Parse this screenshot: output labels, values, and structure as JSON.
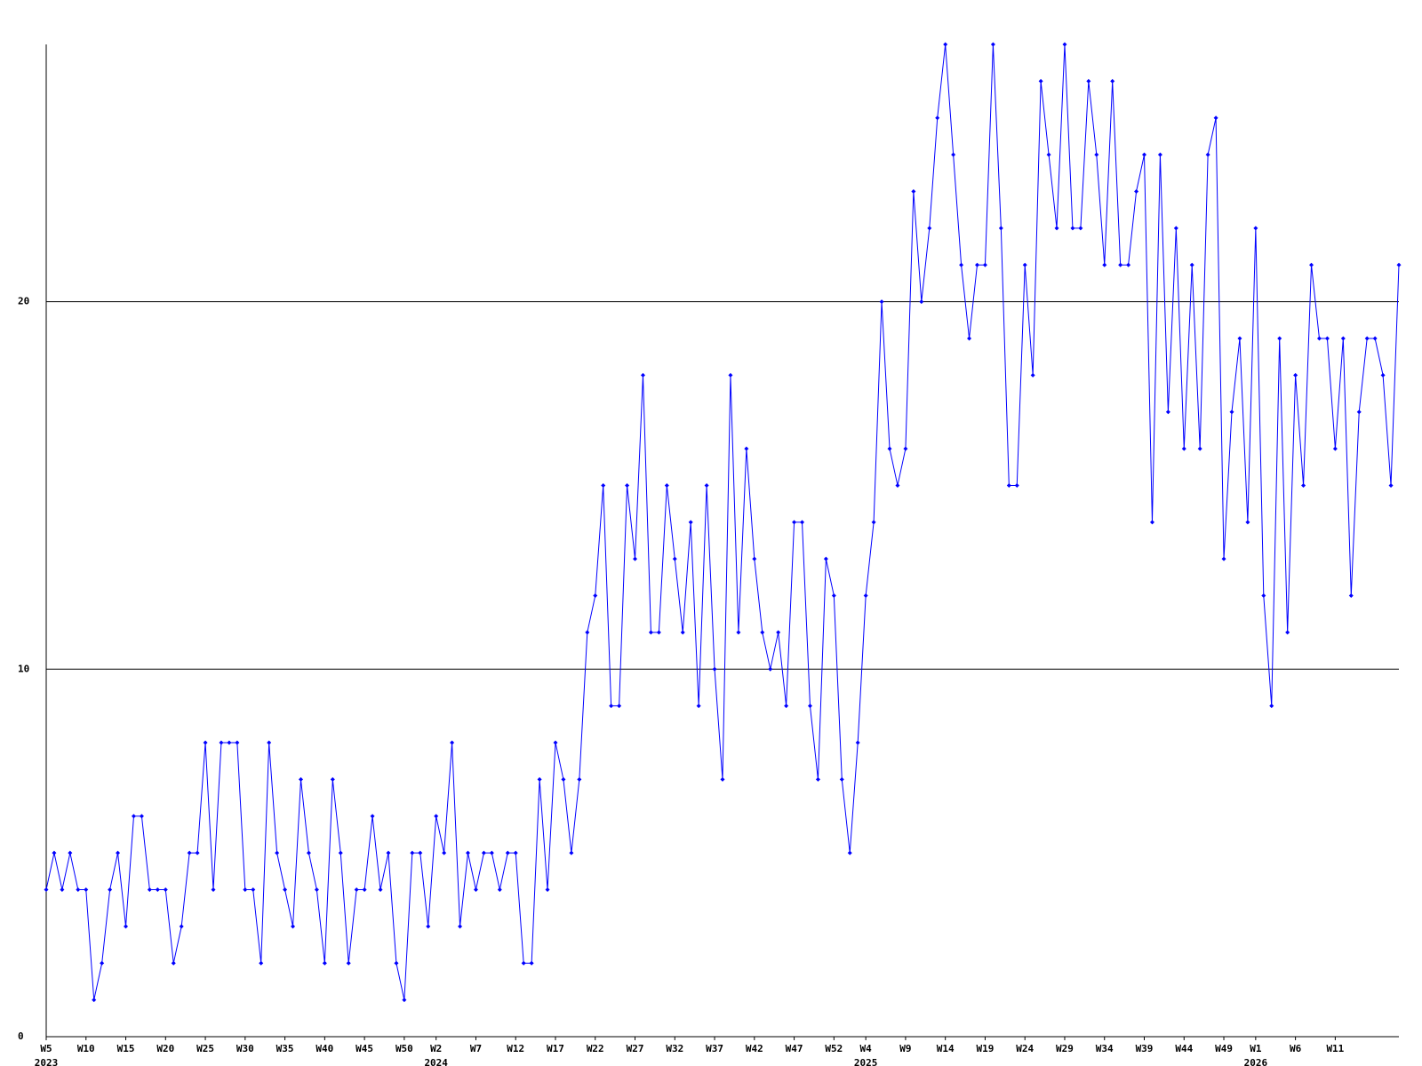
{
  "chart_data": {
    "type": "line",
    "categories": [
      "W5",
      null,
      null,
      null,
      null,
      "W10",
      null,
      null,
      null,
      null,
      "W15",
      null,
      null,
      null,
      null,
      "W20",
      null,
      null,
      null,
      null,
      "W25",
      null,
      null,
      null,
      null,
      "W30",
      null,
      null,
      null,
      null,
      "W35",
      null,
      null,
      null,
      null,
      "W40",
      null,
      null,
      null,
      null,
      "W45",
      null,
      null,
      null,
      null,
      "W50",
      null,
      null,
      null,
      "W2",
      null,
      null,
      null,
      null,
      "W7",
      null,
      null,
      null,
      null,
      "W12",
      null,
      null,
      null,
      null,
      "W17",
      null,
      null,
      null,
      null,
      "W22",
      null,
      null,
      null,
      null,
      "W27",
      null,
      null,
      null,
      null,
      "W32",
      null,
      null,
      null,
      null,
      "W37",
      null,
      null,
      null,
      null,
      "W42",
      null,
      null,
      null,
      null,
      "W47",
      null,
      null,
      null,
      null,
      "W52",
      null,
      null,
      null,
      "W4",
      null,
      null,
      null,
      null,
      "W9",
      null,
      null,
      null,
      null,
      "W14",
      null,
      null,
      null,
      null,
      "W19",
      null,
      null,
      null,
      null,
      "W24",
      null,
      null,
      null,
      null,
      "W29",
      null,
      null,
      null,
      null,
      "W34",
      null,
      null,
      null,
      null,
      "W39",
      null,
      null,
      null,
      null,
      "W44",
      null,
      null,
      null,
      null,
      "W49",
      null,
      null,
      null,
      "W1",
      null,
      null,
      null,
      null,
      "W6",
      null,
      null,
      null,
      null,
      "W11",
      null,
      null,
      null,
      null,
      null,
      null,
      null,
      null
    ],
    "category_years": [
      "2023",
      null,
      null,
      null,
      null,
      null,
      null,
      null,
      null,
      null,
      null,
      null,
      null,
      null,
      null,
      null,
      null,
      null,
      null,
      null,
      null,
      null,
      null,
      null,
      null,
      null,
      null,
      null,
      null,
      null,
      null,
      null,
      null,
      null,
      null,
      null,
      null,
      null,
      null,
      null,
      null,
      null,
      null,
      null,
      null,
      null,
      null,
      null,
      null,
      "2024",
      null,
      null,
      null,
      null,
      null,
      null,
      null,
      null,
      null,
      null,
      null,
      null,
      null,
      null,
      null,
      null,
      null,
      null,
      null,
      null,
      null,
      null,
      null,
      null,
      null,
      null,
      null,
      null,
      null,
      null,
      null,
      null,
      null,
      null,
      null,
      null,
      null,
      null,
      null,
      null,
      null,
      null,
      null,
      null,
      null,
      null,
      null,
      null,
      null,
      null,
      null,
      null,
      null,
      "2025",
      null,
      null,
      null,
      null,
      null,
      null,
      null,
      null,
      null,
      null,
      null,
      null,
      null,
      null,
      null,
      null,
      null,
      null,
      null,
      null,
      null,
      null,
      null,
      null,
      null,
      null,
      null,
      null,
      null,
      null,
      null,
      null,
      null,
      null,
      null,
      null,
      null,
      null,
      null,
      null,
      null,
      null,
      null,
      null,
      null,
      null,
      null,
      null,
      "2026",
      null,
      null,
      null,
      null,
      null,
      null,
      null,
      null,
      null,
      null,
      null,
      null,
      null,
      null,
      null,
      null,
      null,
      null
    ],
    "values": [
      4,
      5,
      4,
      5,
      4,
      4,
      1,
      2,
      4,
      5,
      3,
      6,
      6,
      4,
      4,
      4,
      2,
      3,
      5,
      5,
      8,
      4,
      8,
      8,
      8,
      4,
      4,
      2,
      8,
      5,
      4,
      3,
      7,
      5,
      4,
      2,
      7,
      5,
      2,
      4,
      4,
      6,
      4,
      5,
      2,
      1,
      5,
      5,
      3,
      6,
      5,
      8,
      3,
      5,
      4,
      5,
      5,
      4,
      5,
      5,
      2,
      2,
      7,
      4,
      8,
      7,
      5,
      7,
      11,
      12,
      15,
      9,
      9,
      15,
      13,
      18,
      11,
      11,
      15,
      13,
      11,
      14,
      9,
      15,
      10,
      7,
      18,
      11,
      16,
      13,
      11,
      10,
      11,
      9,
      14,
      14,
      9,
      7,
      13,
      12,
      7,
      5,
      8,
      12,
      14,
      20,
      16,
      15,
      16,
      23,
      20,
      22,
      25,
      27,
      24,
      21,
      19,
      21,
      21,
      27,
      22,
      15,
      15,
      21,
      18,
      26,
      24,
      22,
      27,
      22,
      22,
      26,
      24,
      21,
      26,
      21,
      21,
      23,
      24,
      14,
      24,
      17,
      22,
      16,
      21,
      16,
      24,
      25,
      13,
      17,
      19,
      14,
      22,
      12,
      9,
      19,
      11,
      18,
      15,
      21,
      19,
      19,
      16,
      19,
      12,
      17,
      19,
      19,
      18,
      15,
      21
    ],
    "color": "#0000ff",
    "ylim": [
      0,
      27
    ],
    "yticks": [
      0,
      10,
      20
    ],
    "grid": true
  }
}
